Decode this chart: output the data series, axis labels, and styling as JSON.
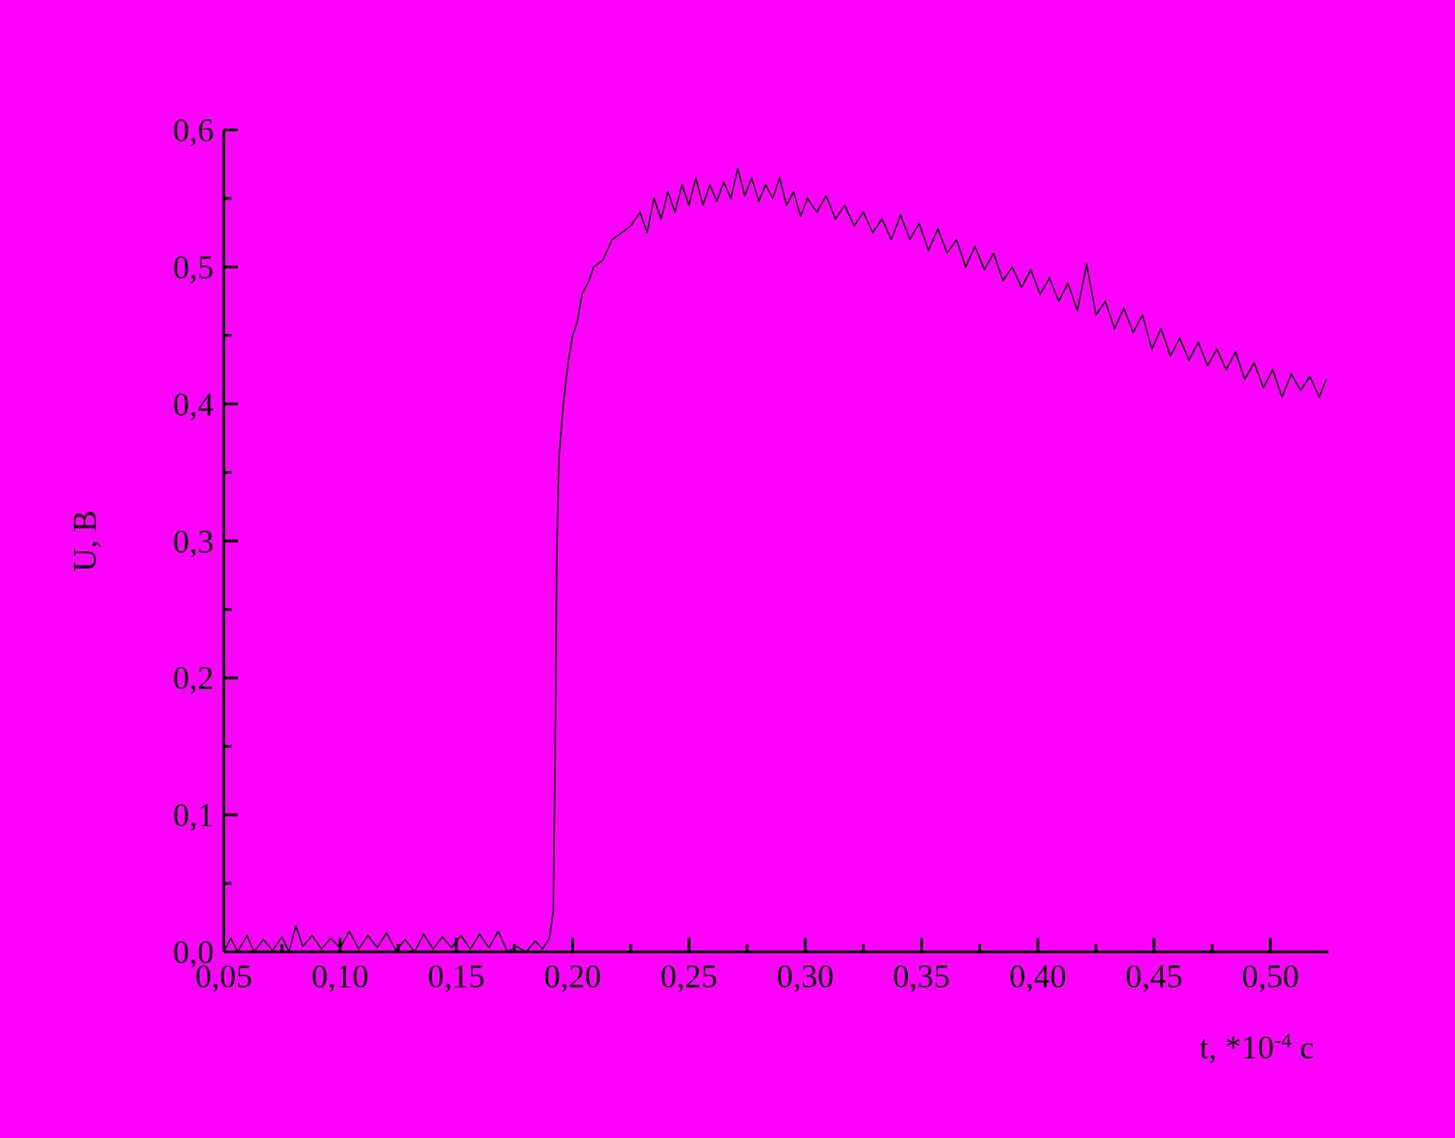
{
  "chart_data": {
    "type": "line",
    "xlabel": "t, *10$^{-4}$ c",
    "ylabel": "U, B",
    "marker": "none",
    "line_style": "solid",
    "xlim": [
      0.05,
      0.525
    ],
    "ylim": [
      0,
      0.6
    ],
    "xticks": [
      {
        "value": 0.05,
        "label": "0,05"
      },
      {
        "value": 0.075,
        "label": null
      },
      {
        "value": 0.1,
        "label": "0,10"
      },
      {
        "value": 0.125,
        "label": null
      },
      {
        "value": 0.15,
        "label": "0,15"
      },
      {
        "value": 0.175,
        "label": null
      },
      {
        "value": 0.2,
        "label": "0,20"
      },
      {
        "value": 0.225,
        "label": null
      },
      {
        "value": 0.25,
        "label": "0,25"
      },
      {
        "value": 0.275,
        "label": null
      },
      {
        "value": 0.3,
        "label": "0,30"
      },
      {
        "value": 0.325,
        "label": null
      },
      {
        "value": 0.35,
        "label": "0,35"
      },
      {
        "value": 0.375,
        "label": null
      },
      {
        "value": 0.4,
        "label": "0,40"
      },
      {
        "value": 0.425,
        "label": null
      },
      {
        "value": 0.45,
        "label": "0,45"
      },
      {
        "value": 0.475,
        "label": null
      },
      {
        "value": 0.5,
        "label": "0,50"
      }
    ],
    "yticks": [
      {
        "value": 0,
        "label": "0,0"
      },
      {
        "value": 0.05,
        "label": null
      },
      {
        "value": 0.1,
        "label": "0,1"
      },
      {
        "value": 0.15,
        "label": null
      },
      {
        "value": 0.2,
        "label": "0,2"
      },
      {
        "value": 0.25,
        "label": null
      },
      {
        "value": 0.3,
        "label": "0,3"
      },
      {
        "value": 0.35,
        "label": null
      },
      {
        "value": 0.4,
        "label": "0,4"
      },
      {
        "value": 0.45,
        "label": null
      },
      {
        "value": 0.5,
        "label": "0,5"
      },
      {
        "value": 0.55,
        "label": null
      },
      {
        "value": 0.6,
        "label": "0,6"
      }
    ],
    "series": [
      {
        "color": "#000000",
        "x": [
          0.05,
          0.053,
          0.056,
          0.06,
          0.063,
          0.067,
          0.071,
          0.075,
          0.078,
          0.081,
          0.084,
          0.088,
          0.092,
          0.096,
          0.1,
          0.104,
          0.108,
          0.112,
          0.116,
          0.12,
          0.124,
          0.128,
          0.132,
          0.136,
          0.14,
          0.144,
          0.148,
          0.152,
          0.156,
          0.16,
          0.164,
          0.168,
          0.172,
          0.176,
          0.18,
          0.184,
          0.187,
          0.19,
          0.1917,
          0.1925,
          0.1933,
          0.1941,
          0.196,
          0.198,
          0.2,
          0.202,
          0.204,
          0.207,
          0.209,
          0.213,
          0.217,
          0.221,
          0.225,
          0.229,
          0.232,
          0.235,
          0.238,
          0.241,
          0.244,
          0.247,
          0.25,
          0.253,
          0.256,
          0.259,
          0.262,
          0.265,
          0.268,
          0.271,
          0.274,
          0.277,
          0.28,
          0.283,
          0.286,
          0.289,
          0.292,
          0.295,
          0.298,
          0.301,
          0.305,
          0.309,
          0.313,
          0.317,
          0.321,
          0.325,
          0.329,
          0.333,
          0.337,
          0.341,
          0.345,
          0.349,
          0.353,
          0.357,
          0.361,
          0.365,
          0.369,
          0.373,
          0.377,
          0.381,
          0.385,
          0.389,
          0.393,
          0.397,
          0.401,
          0.405,
          0.409,
          0.413,
          0.417,
          0.421,
          0.425,
          0.429,
          0.433,
          0.437,
          0.441,
          0.445,
          0.449,
          0.453,
          0.457,
          0.461,
          0.465,
          0.469,
          0.473,
          0.477,
          0.481,
          0.485,
          0.489,
          0.493,
          0.497,
          0.501,
          0.505,
          0.509,
          0.513,
          0.517,
          0.521,
          0.524
        ],
        "values": [
          0,
          0.01,
          0,
          0.012,
          0,
          0.009,
          0.001,
          0.011,
          0,
          0.019,
          0.004,
          0.012,
          0.002,
          0.01,
          0.003,
          0.015,
          0.002,
          0.012,
          0.003,
          0.014,
          0.001,
          0.009,
          0,
          0.013,
          0.002,
          0.011,
          0.003,
          0.012,
          0.002,
          0.013,
          0.003,
          0.015,
          0,
          0.004,
          0,
          0.008,
          0.002,
          0.01,
          0.03,
          0.15,
          0.3,
          0.36,
          0.4,
          0.43,
          0.45,
          0.46,
          0.48,
          0.49,
          0.5,
          0.505,
          0.52,
          0.525,
          0.53,
          0.54,
          0.525,
          0.55,
          0.535,
          0.555,
          0.54,
          0.56,
          0.545,
          0.565,
          0.545,
          0.56,
          0.548,
          0.562,
          0.55,
          0.572,
          0.552,
          0.565,
          0.548,
          0.56,
          0.55,
          0.565,
          0.545,
          0.555,
          0.537,
          0.55,
          0.54,
          0.552,
          0.535,
          0.545,
          0.53,
          0.54,
          0.525,
          0.535,
          0.52,
          0.538,
          0.52,
          0.532,
          0.512,
          0.528,
          0.51,
          0.52,
          0.5,
          0.515,
          0.498,
          0.51,
          0.49,
          0.5,
          0.485,
          0.498,
          0.48,
          0.492,
          0.475,
          0.488,
          0.468,
          0.502,
          0.465,
          0.475,
          0.455,
          0.47,
          0.452,
          0.465,
          0.44,
          0.455,
          0.435,
          0.448,
          0.432,
          0.445,
          0.428,
          0.44,
          0.425,
          0.438,
          0.418,
          0.43,
          0.412,
          0.425,
          0.405,
          0.422,
          0.41,
          0.42,
          0.405,
          0.418
        ]
      }
    ]
  }
}
